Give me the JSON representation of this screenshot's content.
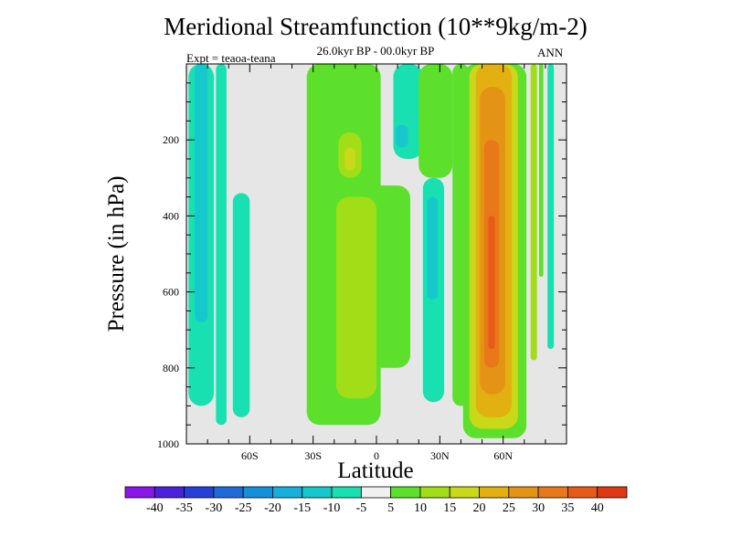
{
  "chart_data": {
    "type": "heatmap",
    "title": "Meridional Streamfunction (10**9kg/m-2)",
    "subtitle": "26.0kyr BP - 00.0kyr BP",
    "left_label": "Expt = teaoa-teana",
    "right_label": "ANN",
    "xlabel": "Latitude",
    "ylabel": "Pressure (in hPa)",
    "xlim": [
      -90,
      90
    ],
    "ylim": [
      1000,
      0
    ],
    "x_ticks": [
      {
        "value": -60,
        "label": "60S"
      },
      {
        "value": -30,
        "label": "30S"
      },
      {
        "value": 0,
        "label": "0"
      },
      {
        "value": 30,
        "label": "30N"
      },
      {
        "value": 60,
        "label": "60N"
      }
    ],
    "y_ticks": [
      {
        "value": 200,
        "label": "200"
      },
      {
        "value": 400,
        "label": "400"
      },
      {
        "value": 600,
        "label": "600"
      },
      {
        "value": 800,
        "label": "800"
      },
      {
        "value": 1000,
        "label": "1000"
      }
    ],
    "colorbar": {
      "labels": [
        "-40",
        "-35",
        "-30",
        "-25",
        "-20",
        "-15",
        "-10",
        "-5",
        "5",
        "10",
        "15",
        "20",
        "25",
        "30",
        "35",
        "40"
      ],
      "colors": [
        "#8a16e8",
        "#4a22dc",
        "#2440d8",
        "#1f6ad8",
        "#1390d8",
        "#16b0dc",
        "#16c8cc",
        "#18e0b0",
        "#f0f0f0",
        "#5ce02c",
        "#a2de18",
        "#cad81a",
        "#e2b010",
        "#e49414",
        "#e8781a",
        "#e85a1a",
        "#e03812"
      ]
    },
    "background_color": "#e6e6e6",
    "fields": [
      {
        "name": "sh-polar-negative-band",
        "value": -7,
        "lat_min": -89,
        "lat_max": -77,
        "p_top": 0,
        "p_bottom": 900
      },
      {
        "name": "sh-polar-negative-core",
        "value": -12,
        "lat_min": -86,
        "lat_max": -80,
        "p_top": 0,
        "p_bottom": 680
      },
      {
        "name": "sh-band-2",
        "value": -7,
        "lat_min": -76,
        "lat_max": -71,
        "p_top": 0,
        "p_bottom": 950
      },
      {
        "name": "sh-midlat-negative",
        "value": -7,
        "lat_min": -68,
        "lat_max": -60,
        "p_top": 340,
        "p_bottom": 930
      },
      {
        "name": "tropical-positive",
        "value": 7,
        "lat_min": -33,
        "lat_max": 2,
        "p_top": 0,
        "p_bottom": 950
      },
      {
        "name": "tropical-positive-east",
        "value": 7,
        "lat_min": -4,
        "lat_max": 16,
        "p_top": 320,
        "p_bottom": 800
      },
      {
        "name": "tropical-core",
        "value": 12,
        "lat_min": -19,
        "lat_max": 0,
        "p_top": 350,
        "p_bottom": 880
      },
      {
        "name": "upper-tropical-core",
        "value": 13,
        "lat_min": -18,
        "lat_max": -7,
        "p_top": 180,
        "p_bottom": 300
      },
      {
        "name": "upper-tropical-max",
        "value": 20,
        "lat_min": -15,
        "lat_max": -10,
        "p_top": 220,
        "p_bottom": 280
      },
      {
        "name": "nh-tropical-negative",
        "value": -7,
        "lat_min": 8,
        "lat_max": 22,
        "p_top": 0,
        "p_bottom": 250
      },
      {
        "name": "nh-tropical-negative-core",
        "value": -12,
        "lat_min": 9,
        "lat_max": 15,
        "p_top": 160,
        "p_bottom": 220
      },
      {
        "name": "nh-subtropical-negative",
        "value": -7,
        "lat_min": 22,
        "lat_max": 32,
        "p_top": 300,
        "p_bottom": 890
      },
      {
        "name": "nh-subtropical-negative-core",
        "value": -12,
        "lat_min": 24,
        "lat_max": 29,
        "p_top": 350,
        "p_bottom": 620
      },
      {
        "name": "nh-upper-positive",
        "value": 7,
        "lat_min": 20,
        "lat_max": 36,
        "p_top": 0,
        "p_bottom": 300
      },
      {
        "name": "nh-upper-positive-2",
        "value": 7,
        "lat_min": 36,
        "lat_max": 44,
        "p_top": 0,
        "p_bottom": 900
      },
      {
        "name": "nh-midlat-cell-outer",
        "value": 7,
        "lat_min": 41,
        "lat_max": 71,
        "p_top": 0,
        "p_bottom": 985
      },
      {
        "name": "nh-midlat-cell-15",
        "value": 17,
        "lat_min": 44,
        "lat_max": 67,
        "p_top": 0,
        "p_bottom": 960
      },
      {
        "name": "nh-midlat-cell-20",
        "value": 22,
        "lat_min": 47,
        "lat_max": 64,
        "p_top": 0,
        "p_bottom": 930
      },
      {
        "name": "nh-midlat-cell-25",
        "value": 27,
        "lat_min": 49,
        "lat_max": 61,
        "p_top": 60,
        "p_bottom": 870
      },
      {
        "name": "nh-midlat-cell-30",
        "value": 32,
        "lat_min": 51,
        "lat_max": 58,
        "p_top": 200,
        "p_bottom": 800
      },
      {
        "name": "nh-midlat-cell-35",
        "value": 37,
        "lat_min": 53,
        "lat_max": 56,
        "p_top": 400,
        "p_bottom": 750
      },
      {
        "name": "nh-polar-band-1",
        "value": 12,
        "lat_min": 73,
        "lat_max": 76,
        "p_top": 0,
        "p_bottom": 780
      },
      {
        "name": "nh-polar-band-2",
        "value": 7,
        "lat_min": 77,
        "lat_max": 79,
        "p_top": 0,
        "p_bottom": 560
      },
      {
        "name": "nh-polar-band-3",
        "value": -7,
        "lat_min": 81,
        "lat_max": 84,
        "p_top": 0,
        "p_bottom": 750
      }
    ]
  }
}
